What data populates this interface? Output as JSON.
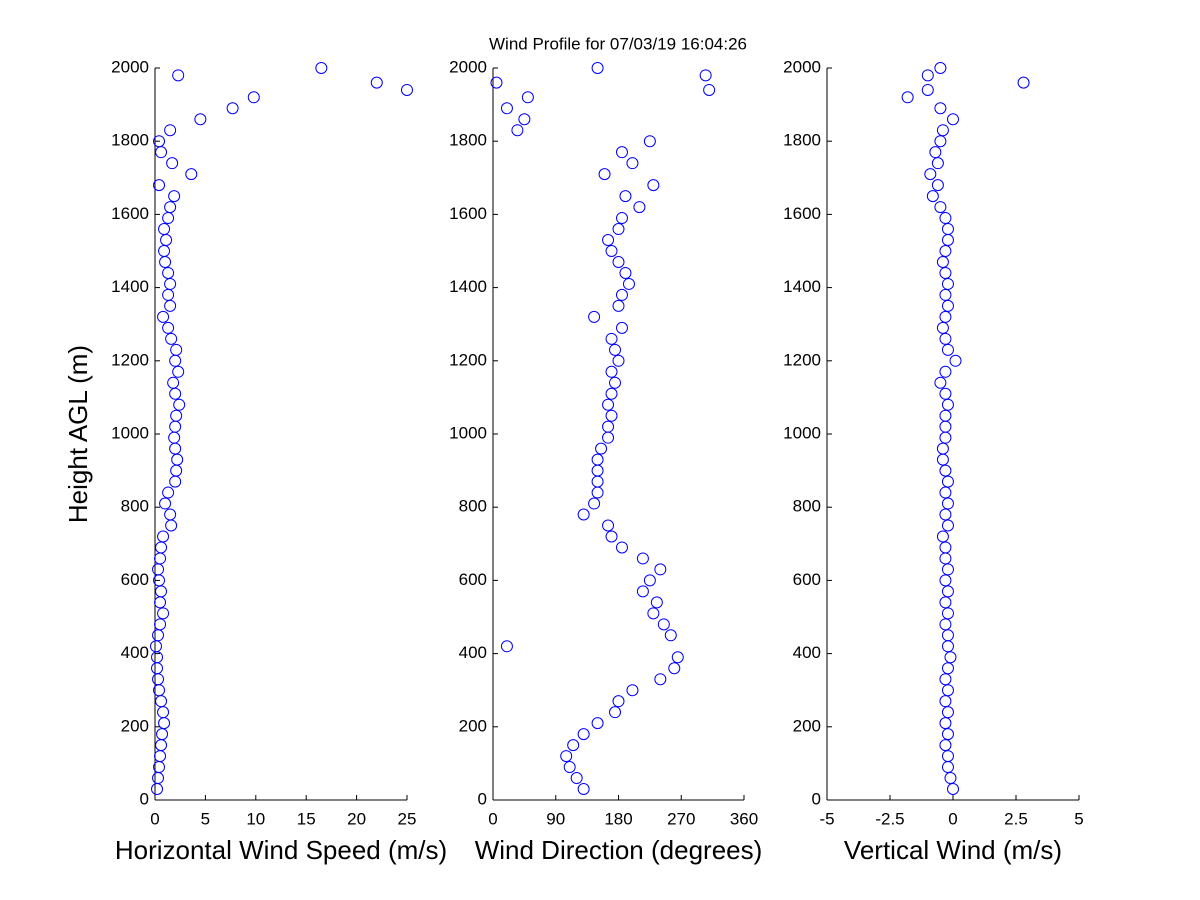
{
  "chart_data": [
    {
      "type": "scatter",
      "title": "Wind Profile for  07/03/19 16:04:26",
      "xlabel": "Horizontal Wind Speed (m/s)",
      "ylabel": "Height AGL (m)",
      "color": "#0000ff",
      "xlim": [
        0,
        25
      ],
      "xticks": [
        0,
        5,
        10,
        15,
        20,
        25
      ],
      "ylim": [
        0,
        2000
      ],
      "yticks": [
        0,
        200,
        400,
        600,
        800,
        1000,
        1200,
        1400,
        1600,
        1800,
        2000
      ],
      "x": [
        0.2,
        0.3,
        0.4,
        0.5,
        0.6,
        0.7,
        0.9,
        0.8,
        0.6,
        0.4,
        0.3,
        0.2,
        0.2,
        0.1,
        0.3,
        0.5,
        0.8,
        0.5,
        0.6,
        0.4,
        0.3,
        0.5,
        0.6,
        0.8,
        1.6,
        1.5,
        1.0,
        1.3,
        2.0,
        2.1,
        2.2,
        2.0,
        1.9,
        2.0,
        2.1,
        2.4,
        2.0,
        1.8,
        2.3,
        2.0,
        2.1,
        1.6,
        1.3,
        0.8,
        1.5,
        1.3,
        1.5,
        1.3,
        1.0,
        0.9,
        1.1,
        0.9,
        1.3,
        1.5,
        1.9,
        0.4,
        3.6,
        1.7,
        0.6,
        0.4,
        1.5,
        4.5,
        7.7,
        9.8,
        25,
        2.3,
        16.5,
        22
      ],
      "y": [
        30,
        60,
        90,
        120,
        150,
        180,
        210,
        240,
        270,
        300,
        330,
        360,
        390,
        420,
        450,
        480,
        510,
        540,
        570,
        600,
        630,
        660,
        690,
        720,
        750,
        780,
        810,
        840,
        870,
        900,
        930,
        960,
        990,
        1020,
        1050,
        1080,
        1110,
        1140,
        1170,
        1200,
        1230,
        1260,
        1290,
        1320,
        1350,
        1380,
        1410,
        1440,
        1470,
        1500,
        1530,
        1560,
        1590,
        1620,
        1650,
        1680,
        1710,
        1740,
        1770,
        1800,
        1830,
        1860,
        1890,
        1920,
        1940,
        1980,
        2000,
        1960
      ]
    },
    {
      "type": "scatter",
      "xlabel": "Wind Direction (degrees)",
      "color": "#0000ff",
      "xlim": [
        0,
        360
      ],
      "xticks": [
        0,
        90,
        180,
        270,
        360
      ],
      "ylim": [
        0,
        2000
      ],
      "yticks": [
        0,
        200,
        400,
        600,
        800,
        1000,
        1200,
        1400,
        1600,
        1800,
        2000
      ],
      "x": [
        130,
        120,
        110,
        105,
        115,
        130,
        150,
        175,
        180,
        200,
        240,
        260,
        265,
        20,
        255,
        245,
        230,
        235,
        215,
        225,
        240,
        215,
        185,
        170,
        165,
        130,
        145,
        150,
        150,
        150,
        150,
        155,
        165,
        165,
        170,
        165,
        170,
        175,
        170,
        180,
        175,
        170,
        185,
        145,
        180,
        185,
        195,
        190,
        180,
        170,
        165,
        180,
        185,
        210,
        190,
        230,
        160,
        200,
        185,
        225,
        35,
        45,
        20,
        50,
        310,
        305,
        150,
        5
      ],
      "y": [
        30,
        60,
        90,
        120,
        150,
        180,
        210,
        240,
        270,
        300,
        330,
        360,
        390,
        420,
        450,
        480,
        510,
        540,
        570,
        600,
        630,
        660,
        690,
        720,
        750,
        780,
        810,
        840,
        870,
        900,
        930,
        960,
        990,
        1020,
        1050,
        1080,
        1110,
        1140,
        1170,
        1200,
        1230,
        1260,
        1290,
        1320,
        1350,
        1380,
        1410,
        1440,
        1470,
        1500,
        1530,
        1560,
        1590,
        1620,
        1650,
        1680,
        1710,
        1740,
        1770,
        1800,
        1830,
        1860,
        1890,
        1920,
        1940,
        1980,
        2000,
        1960
      ]
    },
    {
      "type": "scatter",
      "xlabel": "Vertical Wind (m/s)",
      "color": "#0000ff",
      "xlim": [
        -5,
        5
      ],
      "xticks": [
        -5,
        -2.5,
        0,
        2.5,
        5
      ],
      "ylim": [
        0,
        2000
      ],
      "yticks": [
        0,
        200,
        400,
        600,
        800,
        1000,
        1200,
        1400,
        1600,
        1800,
        2000
      ],
      "x": [
        0.0,
        -0.1,
        -0.2,
        -0.2,
        -0.3,
        -0.2,
        -0.3,
        -0.2,
        -0.3,
        -0.2,
        -0.3,
        -0.2,
        -0.1,
        -0.2,
        -0.2,
        -0.3,
        -0.2,
        -0.3,
        -0.2,
        -0.3,
        -0.2,
        -0.3,
        -0.3,
        -0.4,
        -0.2,
        -0.3,
        -0.2,
        -0.3,
        -0.2,
        -0.3,
        -0.4,
        -0.4,
        -0.3,
        -0.3,
        -0.3,
        -0.2,
        -0.3,
        -0.5,
        -0.3,
        0.1,
        -0.2,
        -0.3,
        -0.4,
        -0.3,
        -0.2,
        -0.3,
        -0.2,
        -0.3,
        -0.4,
        -0.3,
        -0.2,
        -0.2,
        -0.3,
        -0.5,
        -0.8,
        -0.6,
        -0.9,
        -0.6,
        -0.7,
        -0.5,
        -0.4,
        0.0,
        -0.5,
        -1.8,
        -1.0,
        -1.0,
        -0.5,
        2.8
      ],
      "y": [
        30,
        60,
        90,
        120,
        150,
        180,
        210,
        240,
        270,
        300,
        330,
        360,
        390,
        420,
        450,
        480,
        510,
        540,
        570,
        600,
        630,
        660,
        690,
        720,
        750,
        780,
        810,
        840,
        870,
        900,
        930,
        960,
        990,
        1020,
        1050,
        1080,
        1110,
        1140,
        1170,
        1200,
        1230,
        1260,
        1290,
        1320,
        1350,
        1380,
        1410,
        1440,
        1470,
        1500,
        1530,
        1560,
        1590,
        1620,
        1650,
        1680,
        1710,
        1740,
        1770,
        1800,
        1830,
        1860,
        1890,
        1920,
        1940,
        1980,
        2000,
        1960
      ]
    }
  ]
}
